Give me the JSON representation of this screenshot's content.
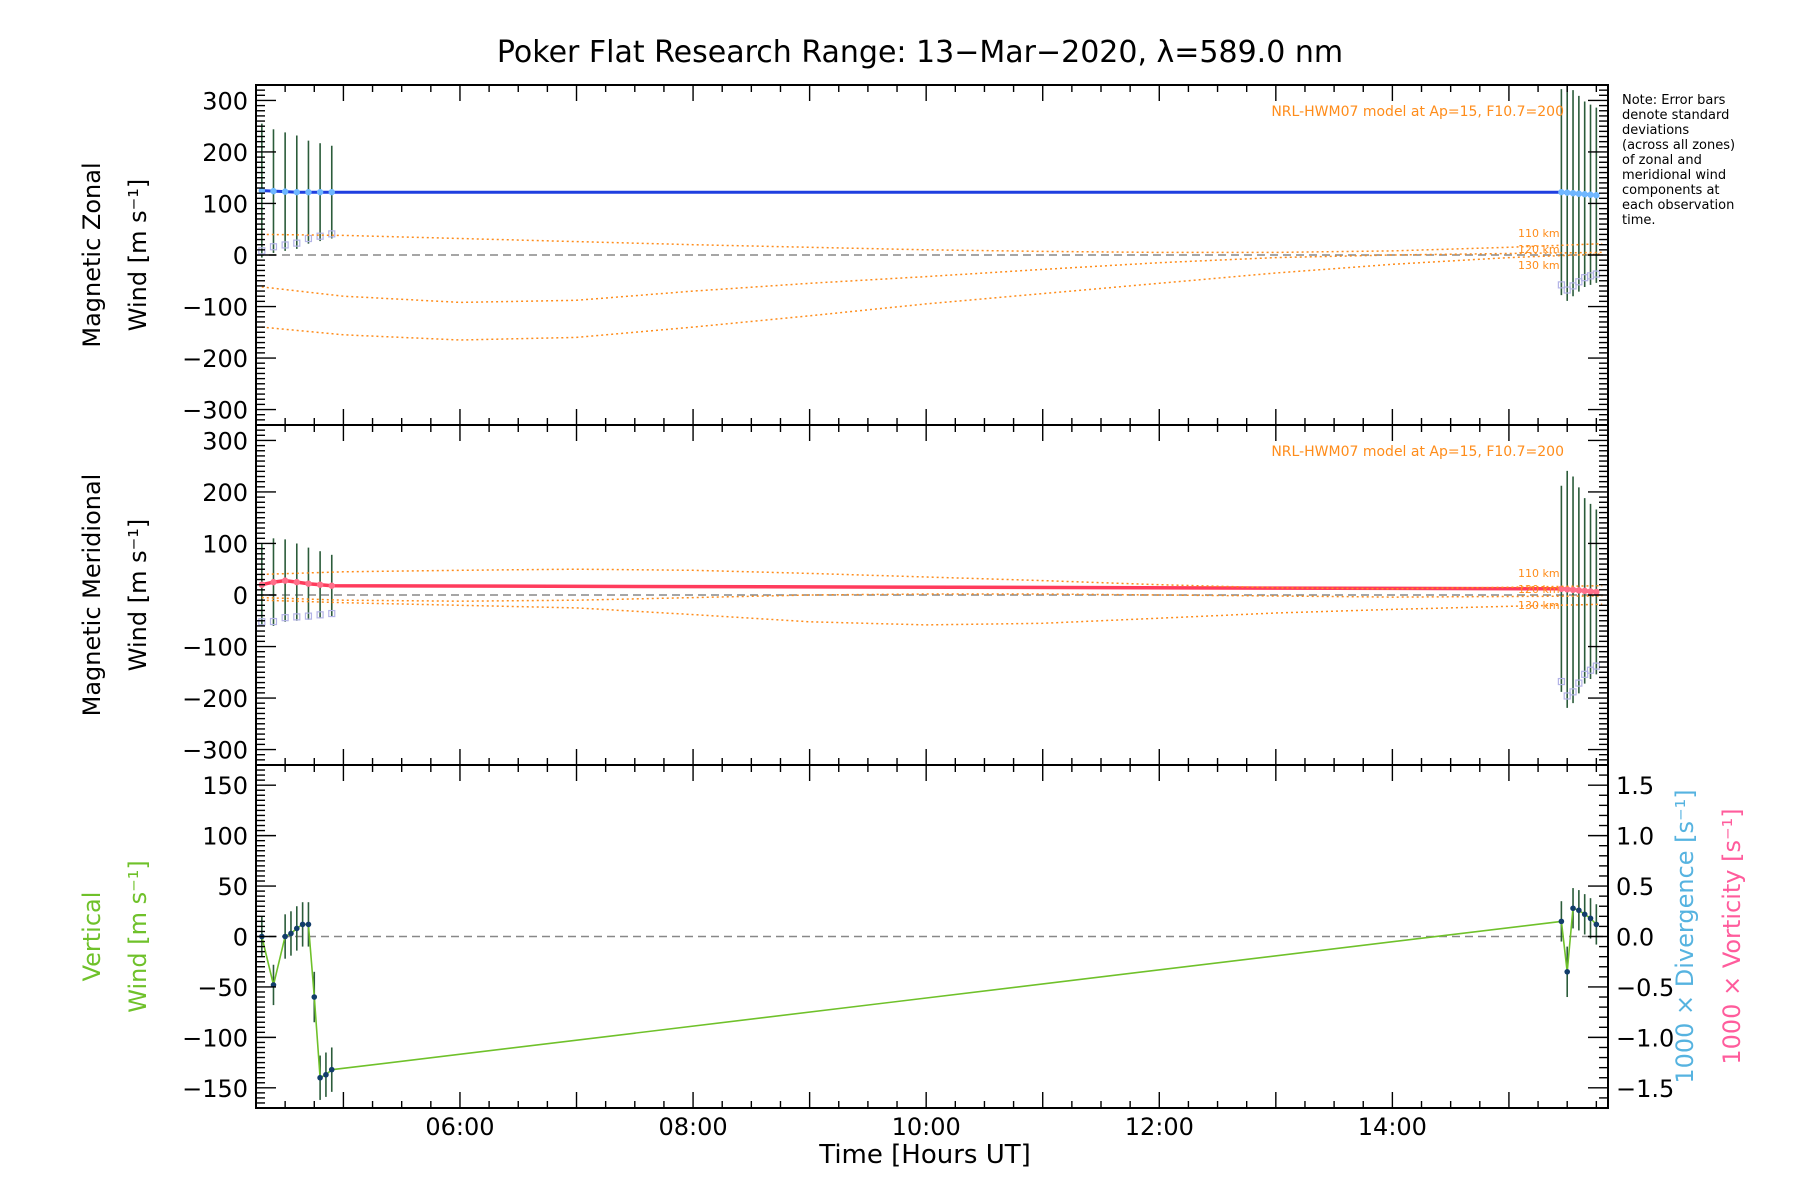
{
  "colors": {
    "zonal": "#1f3fe0",
    "zonal_light": "#6fb7ff",
    "meridional": "#ff3b5c",
    "model": "#ff8c1a",
    "vertical": "#6fc12a",
    "divergence": "#56b3e0",
    "vorticity": "#ff5c9c",
    "errorbar": "#2b5c3a",
    "scatter": "#b3b3e6",
    "zero": "#888888"
  },
  "chart_data": {
    "type": "line",
    "title": "Poker Flat Research Range: 13−Mar−2020, λ=589.0 nm",
    "xlabel": "Time [Hours UT]",
    "xlim": [
      4.25,
      15.85
    ],
    "x_ticks": [
      {
        "value": 6,
        "label": "06:00"
      },
      {
        "value": 8,
        "label": "08:00"
      },
      {
        "value": 10,
        "label": "10:00"
      },
      {
        "value": 12,
        "label": "12:00"
      },
      {
        "value": 14,
        "label": "14:00"
      }
    ],
    "note": [
      "Note: Error bars",
      "denote standard",
      "deviations",
      "(across all zones)",
      "of zonal and",
      "meridional wind",
      "components at",
      "each observation",
      "time."
    ],
    "panels": [
      {
        "id": "zonal",
        "ylabel_line1": "Magnetic Zonal",
        "ylabel_line2": "Wind [m s⁻¹]",
        "ylim": [
          -330,
          330
        ],
        "yticks": [
          {
            "value": 300,
            "label": "300"
          },
          {
            "value": 200,
            "label": "200"
          },
          {
            "value": 100,
            "label": "100"
          },
          {
            "value": 0,
            "label": "0"
          },
          {
            "value": -100,
            "label": "−100"
          },
          {
            "value": -200,
            "label": "−200"
          },
          {
            "value": -300,
            "label": "−300"
          }
        ],
        "model_label": "NRL-HWM07 model at Ap=15, F10.7=200",
        "altitude_labels": [
          "110 km",
          "120 km",
          "130 km"
        ],
        "series": [
          {
            "kind": "observed",
            "x": [
              4.3,
              4.4,
              4.5,
              4.6,
              4.7,
              4.8,
              4.9,
              15.45,
              15.5,
              15.55,
              15.6,
              15.65,
              15.7,
              15.75
            ],
            "y": [
              125,
              124,
              123,
              122,
              122,
              122,
              122,
              122,
              121,
              120,
              119,
              118,
              117,
              116
            ],
            "err": [
              130,
              120,
              115,
              110,
              100,
              95,
              90,
              200,
              210,
              200,
              190,
              180,
              175,
              170
            ]
          },
          {
            "kind": "model",
            "x": [
              4.3,
              5,
              6,
              7,
              8,
              9,
              10,
              11,
              12,
              13,
              14,
              15,
              15.8
            ],
            "y": [
              40,
              38,
              32,
              26,
              20,
              15,
              10,
              7,
              5,
              5,
              8,
              15,
              22
            ]
          },
          {
            "kind": "model",
            "x": [
              4.3,
              5,
              6,
              7,
              8,
              9,
              10,
              11,
              12,
              13,
              14,
              15,
              15.8
            ],
            "y": [
              -62,
              -80,
              -92,
              -88,
              -70,
              -55,
              -42,
              -28,
              -15,
              -5,
              0,
              3,
              5
            ]
          },
          {
            "kind": "model",
            "x": [
              4.3,
              5,
              6,
              7,
              8,
              9,
              10,
              11,
              12,
              13,
              14,
              15,
              15.8
            ],
            "y": [
              -140,
              -155,
              -165,
              -160,
              -140,
              -118,
              -95,
              -75,
              -55,
              -35,
              -18,
              -5,
              2
            ]
          }
        ]
      },
      {
        "id": "meridional",
        "ylabel_line1": "Magnetic Meridional",
        "ylabel_line2": "Wind [m s⁻¹]",
        "ylim": [
          -330,
          330
        ],
        "yticks": [
          {
            "value": 300,
            "label": "300"
          },
          {
            "value": 200,
            "label": "200"
          },
          {
            "value": 100,
            "label": "100"
          },
          {
            "value": 0,
            "label": "0"
          },
          {
            "value": -100,
            "label": "−100"
          },
          {
            "value": -200,
            "label": "−200"
          },
          {
            "value": -300,
            "label": "−300"
          }
        ],
        "model_label": "NRL-HWM07 model at Ap=15, F10.7=200",
        "altitude_labels": [
          "110 km",
          "120 km",
          "130 km"
        ],
        "series": [
          {
            "kind": "observed",
            "x": [
              4.3,
              4.4,
              4.5,
              4.6,
              4.7,
              4.8,
              4.9,
              15.45,
              15.5,
              15.55,
              15.6,
              15.65,
              15.7,
              15.75
            ],
            "y": [
              20,
              25,
              28,
              25,
              22,
              20,
              18,
              12,
              11,
              10,
              9,
              8,
              7,
              6
            ],
            "err": [
              80,
              85,
              80,
              75,
              70,
              65,
              60,
              200,
              230,
              220,
              200,
              180,
              170,
              160
            ]
          },
          {
            "kind": "model",
            "x": [
              4.3,
              5,
              6,
              7,
              8,
              9,
              10,
              11,
              12,
              13,
              14,
              15,
              15.8
            ],
            "y": [
              40,
              45,
              48,
              50,
              48,
              42,
              35,
              28,
              20,
              14,
              12,
              15,
              18
            ]
          },
          {
            "kind": "model",
            "x": [
              4.3,
              5,
              6,
              7,
              8,
              9,
              10,
              11,
              12,
              13,
              14,
              15,
              15.8
            ],
            "y": [
              -5,
              -10,
              -12,
              -10,
              -5,
              0,
              2,
              2,
              0,
              -2,
              -4,
              -3,
              -2
            ]
          },
          {
            "kind": "model",
            "x": [
              4.3,
              5,
              6,
              7,
              8,
              9,
              10,
              11,
              12,
              13,
              14,
              15,
              15.8
            ],
            "y": [
              -10,
              -15,
              -20,
              -25,
              -38,
              -52,
              -58,
              -55,
              -45,
              -35,
              -28,
              -22,
              -18
            ]
          }
        ]
      },
      {
        "id": "vertical",
        "ylabel_line1": "Vertical",
        "ylabel_line2": "Wind [m s⁻¹]",
        "ylim": [
          -170,
          170
        ],
        "yticks": [
          {
            "value": 150,
            "label": "150"
          },
          {
            "value": 100,
            "label": "100"
          },
          {
            "value": 50,
            "label": "50"
          },
          {
            "value": 0,
            "label": "0"
          },
          {
            "value": -50,
            "label": "−50"
          },
          {
            "value": -100,
            "label": "−100"
          },
          {
            "value": -150,
            "label": "−150"
          }
        ],
        "y2lim": [
          -1.7,
          1.7
        ],
        "y2ticks": [
          {
            "value": 1.5,
            "label": "1.5"
          },
          {
            "value": 1.0,
            "label": "1.0"
          },
          {
            "value": 0.5,
            "label": "0.5"
          },
          {
            "value": 0.0,
            "label": "0.0"
          },
          {
            "value": -0.5,
            "label": "−0.5"
          },
          {
            "value": -1.0,
            "label": "−1.0"
          },
          {
            "value": -1.5,
            "label": "−1.5"
          }
        ],
        "y2label_divergence": "1000 × Divergence [s⁻¹]",
        "y2label_vorticity": "1000 × Vorticity [s⁻¹]",
        "series": [
          {
            "kind": "vertical",
            "x": [
              4.3,
              4.4,
              4.5,
              4.55,
              4.6,
              4.65,
              4.7,
              4.75,
              4.8,
              4.85,
              4.9,
              15.45,
              15.5,
              15.55,
              15.6,
              15.65,
              15.7,
              15.75
            ],
            "y": [
              0,
              -48,
              0,
              3,
              8,
              12,
              12,
              -60,
              -140,
              -137,
              -132,
              15,
              -35,
              28,
              26,
              22,
              18,
              12
            ],
            "err": [
              20,
              20,
              22,
              22,
              22,
              22,
              22,
              25,
              22,
              22,
              22,
              20,
              25,
              20,
              20,
              20,
              20,
              20
            ]
          }
        ]
      }
    ]
  }
}
